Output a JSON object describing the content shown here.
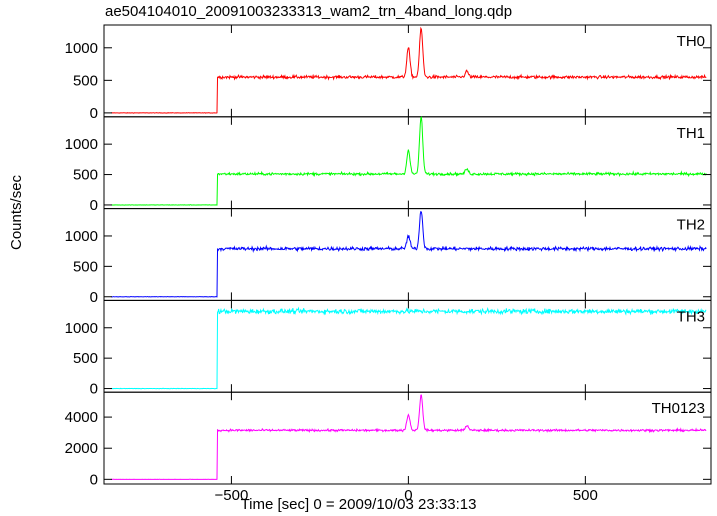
{
  "chart_data": {
    "type": "line",
    "title": "ae504104010_20091003233313_wam2_trn_4band_long.qdp",
    "xlabel": "Time [sec] 0 = 2009/10/03 23:33:13",
    "ylabel": "Counts/sec",
    "xlim": [
      -860,
      855
    ],
    "x_ticks": [
      -500,
      0,
      500
    ],
    "x_tick_labels": [
      "−500",
      "0",
      "500"
    ],
    "panels": [
      {
        "name": "TH0",
        "color": "#ff0000",
        "ylim": [
          -60,
          1350
        ],
        "y_ticks": [
          0,
          500,
          1000
        ],
        "pre_level": 0,
        "on_time": -540,
        "post_level": 550,
        "noise": 22,
        "features": [
          {
            "x": 0,
            "y": 1000
          },
          {
            "x": 36,
            "y": 1300
          },
          {
            "x": 165,
            "y": 640
          }
        ]
      },
      {
        "name": "TH1",
        "color": "#00ff00",
        "ylim": [
          -60,
          1450
        ],
        "y_ticks": [
          0,
          500,
          1000
        ],
        "pre_level": 0,
        "on_time": -540,
        "post_level": 510,
        "noise": 20,
        "features": [
          {
            "x": 0,
            "y": 900
          },
          {
            "x": 36,
            "y": 1450
          },
          {
            "x": 165,
            "y": 590
          }
        ]
      },
      {
        "name": "TH2",
        "color": "#0000ff",
        "ylim": [
          -60,
          1450
        ],
        "y_ticks": [
          0,
          500,
          1000
        ],
        "pre_level": 0,
        "on_time": -540,
        "post_level": 790,
        "noise": 28,
        "features": [
          {
            "x": 0,
            "y": 1000
          },
          {
            "x": 36,
            "y": 1430
          }
        ]
      },
      {
        "name": "TH3",
        "color": "#00ffff",
        "ylim": [
          -60,
          1450
        ],
        "y_ticks": [
          0,
          500,
          1000
        ],
        "pre_level": 0,
        "on_time": -540,
        "post_level": 1270,
        "noise": 38,
        "features": []
      },
      {
        "name": "TH0123",
        "color": "#ff00ff",
        "ylim": [
          -300,
          5600
        ],
        "y_ticks": [
          0,
          2000,
          4000
        ],
        "pre_level": 0,
        "on_time": -540,
        "post_level": 3150,
        "noise": 65,
        "features": [
          {
            "x": 0,
            "y": 4150
          },
          {
            "x": 36,
            "y": 5400
          },
          {
            "x": 165,
            "y": 3450
          }
        ]
      }
    ]
  }
}
